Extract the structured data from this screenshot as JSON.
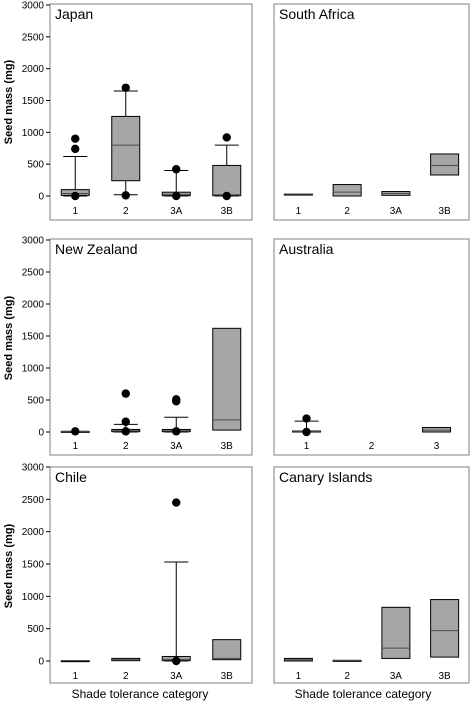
{
  "figure": {
    "ylabel": "Seed mass (mg)",
    "xlabel": "Shade tolerance category"
  },
  "chart_data": [
    {
      "type": "box",
      "title": "Japan",
      "categories": [
        "1",
        "2",
        "3A",
        "3B"
      ],
      "ylim": [
        0,
        3000
      ],
      "yticks": [
        0,
        500,
        1000,
        1500,
        2000,
        2500,
        3000
      ],
      "boxes": [
        {
          "q1": 10,
          "median": 40,
          "q3": 100,
          "whisker_low": 0,
          "whisker_high": 620,
          "outliers": [
            0,
            740,
            900
          ]
        },
        {
          "q1": 240,
          "median": 800,
          "q3": 1250,
          "whisker_low": 20,
          "whisker_high": 1650,
          "outliers": [
            10,
            1700
          ]
        },
        {
          "q1": 5,
          "median": 25,
          "q3": 60,
          "whisker_low": 0,
          "whisker_high": 400,
          "outliers": [
            0,
            420
          ]
        },
        {
          "q1": 5,
          "median": 20,
          "q3": 480,
          "whisker_low": 0,
          "whisker_high": 800,
          "outliers": [
            0,
            920
          ]
        }
      ]
    },
    {
      "type": "box",
      "title": "South Africa",
      "categories": [
        "1",
        "2",
        "3A",
        "3B"
      ],
      "ylim": [
        0,
        3000
      ],
      "yticks": [
        0,
        500,
        1000,
        1500,
        2000,
        2500,
        3000
      ],
      "boxes": [
        {
          "q1": 30,
          "median": 30,
          "q3": 30
        },
        {
          "q1": 0,
          "median": 60,
          "q3": 180
        },
        {
          "q1": 10,
          "median": 40,
          "q3": 70
        },
        {
          "q1": 330,
          "median": 480,
          "q3": 660
        }
      ]
    },
    {
      "type": "box",
      "title": "New Zealand",
      "categories": [
        "1",
        "2",
        "3A",
        "3B"
      ],
      "ylim": [
        0,
        3000
      ],
      "yticks": [
        0,
        500,
        1000,
        1500,
        2000,
        2500,
        3000
      ],
      "boxes": [
        {
          "q1": 0,
          "median": 5,
          "q3": 10,
          "whisker_low": 0,
          "whisker_high": 10,
          "outliers": [
            10
          ]
        },
        {
          "q1": 5,
          "median": 20,
          "q3": 40,
          "whisker_low": 0,
          "whisker_high": 120,
          "outliers": [
            10,
            160,
            600
          ]
        },
        {
          "q1": 5,
          "median": 20,
          "q3": 40,
          "whisker_low": 0,
          "whisker_high": 230,
          "outliers": [
            10,
            480,
            510
          ]
        },
        {
          "q1": 30,
          "median": 190,
          "q3": 1620
        }
      ]
    },
    {
      "type": "box",
      "title": "Australia",
      "categories": [
        "1",
        "2",
        "3"
      ],
      "ylim": [
        0,
        3000
      ],
      "yticks": [
        0,
        500,
        1000,
        1500,
        2000,
        2500,
        3000
      ],
      "boxes": [
        {
          "q1": 0,
          "median": 5,
          "q3": 15,
          "whisker_low": 0,
          "whisker_high": 170,
          "outliers": [
            0,
            210
          ]
        },
        null,
        {
          "q1": 0,
          "median": 30,
          "q3": 70
        }
      ]
    },
    {
      "type": "box",
      "title": "Chile",
      "categories": [
        "1",
        "2",
        "3A",
        "3B"
      ],
      "ylim": [
        0,
        3000
      ],
      "yticks": [
        0,
        500,
        1000,
        1500,
        2000,
        2500,
        3000
      ],
      "boxes": [
        {
          "q1": 5,
          "median": 5,
          "q3": 5
        },
        {
          "q1": 5,
          "median": 20,
          "q3": 40
        },
        {
          "q1": 5,
          "median": 25,
          "q3": 70,
          "whisker_low": 0,
          "whisker_high": 1530,
          "outliers": [
            0,
            2450
          ]
        },
        {
          "q1": 20,
          "median": 40,
          "q3": 330
        }
      ]
    },
    {
      "type": "box",
      "title": "Canary Islands",
      "categories": [
        "1",
        "2",
        "3A",
        "3B"
      ],
      "ylim": [
        0,
        3000
      ],
      "yticks": [
        0,
        500,
        1000,
        1500,
        2000,
        2500,
        3000
      ],
      "boxes": [
        {
          "q1": 0,
          "median": 20,
          "q3": 40
        },
        {
          "q1": 10,
          "median": 10,
          "q3": 10
        },
        {
          "q1": 40,
          "median": 200,
          "q3": 830
        },
        {
          "q1": 60,
          "median": 470,
          "q3": 950
        }
      ]
    }
  ],
  "colors": {
    "box_fill": "#a6a6a6",
    "stroke": "#000000",
    "frame": "#7f7f7f",
    "median": "#4d4d4d"
  }
}
